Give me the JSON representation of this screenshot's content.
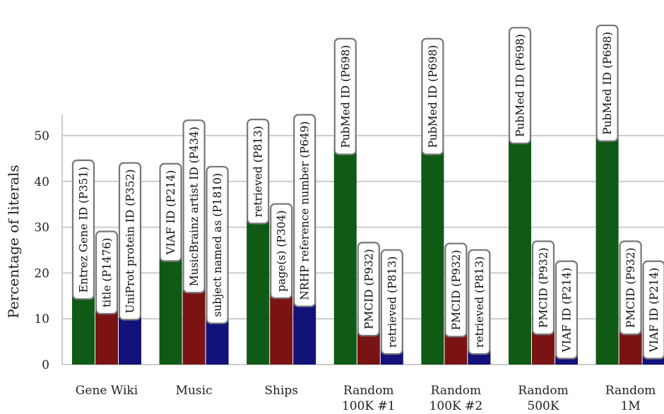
{
  "chart_data": {
    "type": "bar",
    "title": "",
    "xlabel": "",
    "ylabel": "Percentage of literals",
    "ylim": [
      0,
      54.5
    ],
    "yticks": [
      0,
      10,
      20,
      30,
      40,
      50
    ],
    "grid": "horizontal",
    "legend": "none; each bar labeled with a property name",
    "groups": [
      {
        "name": [
          "Gene Wiki"
        ],
        "bars": [
          {
            "label": "Entrez Gene ID (P351)",
            "value": 16.0
          },
          {
            "label": "title (P1476)",
            "value": 12.8
          },
          {
            "label": "UniProt protein ID (P352)",
            "value": 11.5
          }
        ]
      },
      {
        "name": [
          "Music"
        ],
        "bars": [
          {
            "label": "VIAF ID (P214)",
            "value": 24.3
          },
          {
            "label": "MusicBrainz artist ID (P434)",
            "value": 17.4
          },
          {
            "label": "subject named as (P1810)",
            "value": 10.7
          }
        ]
      },
      {
        "name": [
          "Ships"
        ],
        "bars": [
          {
            "label": "retrieved (P813)",
            "value": 32.5
          },
          {
            "label": "page(s) (P304)",
            "value": 16.2
          },
          {
            "label": "NRHP reference number (P649)",
            "value": 14.4
          }
        ]
      },
      {
        "name": [
          "Random",
          "100K #1"
        ],
        "bars": [
          {
            "label": "PubMed ID (P698)",
            "value": 47.6
          },
          {
            "label": "PMCID (P932)",
            "value": 8.0
          },
          {
            "label": "retrieved (P813)",
            "value": 4.0
          }
        ]
      },
      {
        "name": [
          "Random",
          "100K #2"
        ],
        "bars": [
          {
            "label": "PubMed ID (P698)",
            "value": 47.6
          },
          {
            "label": "PMCID (P932)",
            "value": 7.8
          },
          {
            "label": "retrieved (P813)",
            "value": 4.0
          }
        ]
      },
      {
        "name": [
          "Random",
          "500K"
        ],
        "bars": [
          {
            "label": "PubMed ID (P698)",
            "value": 50.0
          },
          {
            "label": "PMCID (P932)",
            "value": 8.3
          },
          {
            "label": "VIAF ID (P214)",
            "value": 3.0
          }
        ]
      },
      {
        "name": [
          "Random",
          "1M"
        ],
        "bars": [
          {
            "label": "PubMed ID (P698)",
            "value": 50.5
          },
          {
            "label": "PMCID (P932)",
            "value": 8.3
          },
          {
            "label": "VIAF ID (P214)",
            "value": 3.0
          }
        ]
      }
    ],
    "colors": [
      "#0f5a14",
      "#7a1414",
      "#12127a"
    ]
  }
}
